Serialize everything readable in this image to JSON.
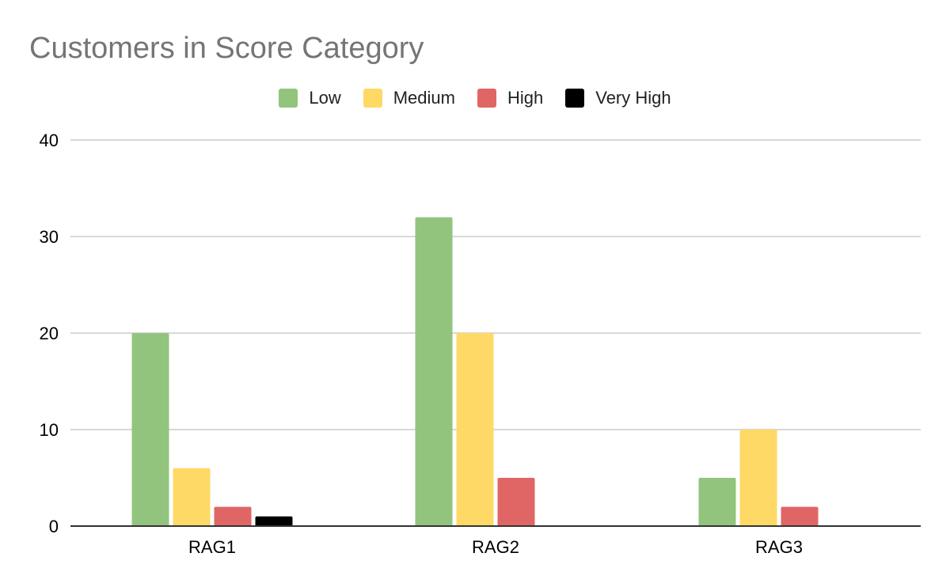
{
  "chart_data": {
    "type": "bar",
    "title": "Customers in Score Category",
    "xlabel": "",
    "ylabel": "",
    "categories": [
      "RAG1",
      "RAG2",
      "RAG3"
    ],
    "series": [
      {
        "name": "Low",
        "color": "#93c47d",
        "values": [
          20,
          32,
          5
        ]
      },
      {
        "name": "Medium",
        "color": "#ffd966",
        "values": [
          6,
          20,
          10
        ]
      },
      {
        "name": "High",
        "color": "#e06666",
        "values": [
          2,
          5,
          2
        ]
      },
      {
        "name": "Very High",
        "color": "#000000",
        "values": [
          1,
          0,
          0
        ]
      }
    ],
    "ylim": [
      0,
      40
    ],
    "yticks": [
      "0",
      "10",
      "20",
      "30",
      "40"
    ],
    "grid": true,
    "legend_position": "top-center"
  }
}
